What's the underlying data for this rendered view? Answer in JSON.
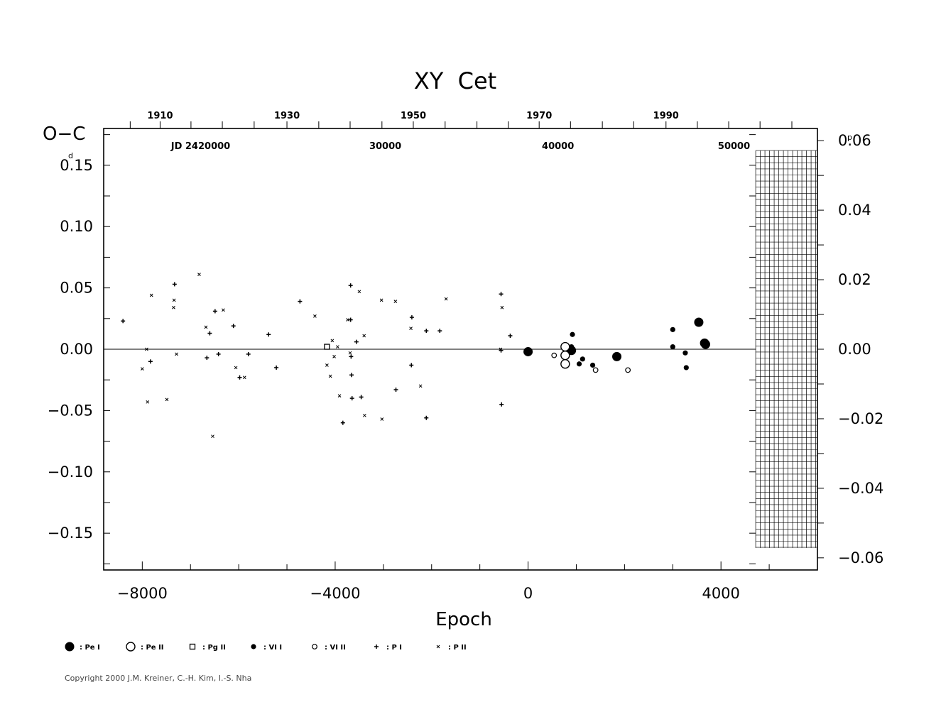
{
  "chart_data": {
    "type": "scatter",
    "title": "XY  Cet",
    "xlabel": "Epoch",
    "ylabel": "O−C",
    "ylabel_unit": "d",
    "y2label_unit": "p",
    "xlim": [
      -8800,
      6000
    ],
    "ylim": [
      -0.18,
      0.18
    ],
    "y2lim": [
      -0.0635,
      0.0635
    ],
    "x_ticks": [
      -8000,
      -4000,
      0,
      4000
    ],
    "x_tick_labels": [
      "−8000",
      "−4000",
      "0",
      "4000"
    ],
    "y_ticks": [
      0.15,
      0.1,
      0.05,
      0.0,
      -0.05,
      -0.1,
      -0.15
    ],
    "y_tick_labels": [
      "0.15",
      "0.10",
      "0.05",
      "0.00",
      "−0.05",
      "−0.10",
      "−0.15"
    ],
    "y2_ticks": [
      0.06,
      0.04,
      0.02,
      0.0,
      -0.02,
      -0.04,
      -0.06
    ],
    "y2_tick_labels": [
      "0.06",
      "0.04",
      "0.02",
      "0.00",
      "−0.02",
      "−0.04",
      "−0.06"
    ],
    "top_year_ticks": [
      {
        "epoch": -7630,
        "label": "1910"
      },
      {
        "epoch": -5000,
        "label": "1930"
      },
      {
        "epoch": -2380,
        "label": "1950"
      },
      {
        "epoch": 230,
        "label": "1970"
      },
      {
        "epoch": 2860,
        "label": "1990"
      }
    ],
    "top_year_minor": [
      -8250,
      -6990,
      -6340,
      -5680,
      -4340,
      -3690,
      -3030,
      -1720,
      -1060,
      -410,
      880,
      1540,
      2190,
      3510,
      4160,
      4810,
      5470
    ],
    "jd_labels": [
      {
        "epoch": -6790,
        "label": "JD 2420000"
      },
      {
        "epoch": -2960,
        "label": "30000"
      },
      {
        "epoch": 620,
        "label": "40000"
      },
      {
        "epoch": 4270,
        "label": "50000"
      }
    ],
    "hatched_region": {
      "x_from": 4720,
      "x_to": 6000,
      "y_from": -0.162,
      "y_to": 0.162
    },
    "legend": [
      {
        "key": "PeI",
        "label": ": Pe I"
      },
      {
        "key": "PeII",
        "label": ": Pe II"
      },
      {
        "key": "PgII",
        "label": ": Pg II"
      },
      {
        "key": "VII",
        "label": ": VI I"
      },
      {
        "key": "VIII",
        "label": ": VI II"
      },
      {
        "key": "PI",
        "label": ": P I"
      },
      {
        "key": "PII",
        "label": ": P II"
      }
    ],
    "series": [
      {
        "name": "Pe I",
        "marker": "filled-circle-large",
        "points": [
          [
            0,
            -0.002
          ],
          [
            900,
            -0.001
          ],
          [
            1840,
            -0.006
          ],
          [
            3540,
            0.022
          ],
          [
            3660,
            0.005
          ],
          [
            3680,
            0.004
          ]
        ]
      },
      {
        "name": "Pe II",
        "marker": "open-circle-large",
        "points": [
          [
            770,
            0.002
          ],
          [
            770,
            -0.005
          ],
          [
            770,
            -0.012
          ]
        ]
      },
      {
        "name": "Pg II",
        "marker": "open-square",
        "points": [
          [
            -4170,
            0.002
          ]
        ]
      },
      {
        "name": "VI I",
        "marker": "filled-circle-small",
        "points": [
          [
            920,
            0.012
          ],
          [
            900,
            0.002
          ],
          [
            1060,
            -0.012
          ],
          [
            1130,
            -0.008
          ],
          [
            1340,
            -0.013
          ],
          [
            3000,
            0.016
          ],
          [
            3000,
            0.002
          ],
          [
            3260,
            -0.003
          ],
          [
            3280,
            -0.015
          ]
        ]
      },
      {
        "name": "VI II",
        "marker": "open-circle-small",
        "points": [
          [
            540,
            -0.005
          ],
          [
            1400,
            -0.017
          ],
          [
            2070,
            -0.017
          ]
        ]
      },
      {
        "name": "P I",
        "marker": "plus",
        "points": [
          [
            -8400,
            0.023
          ],
          [
            -7830,
            -0.01
          ],
          [
            -7330,
            0.053
          ],
          [
            -6660,
            -0.007
          ],
          [
            -6600,
            0.013
          ],
          [
            -6490,
            0.031
          ],
          [
            -6420,
            -0.004
          ],
          [
            -6110,
            0.019
          ],
          [
            -5980,
            -0.023
          ],
          [
            -5800,
            -0.004
          ],
          [
            -5380,
            0.012
          ],
          [
            -5220,
            -0.015
          ],
          [
            -4730,
            0.039
          ],
          [
            -3840,
            -0.06
          ],
          [
            -3680,
            0.052
          ],
          [
            -3680,
            0.024
          ],
          [
            -3670,
            -0.006
          ],
          [
            -3660,
            -0.021
          ],
          [
            -3650,
            -0.04
          ],
          [
            -3560,
            0.006
          ],
          [
            -3460,
            -0.039
          ],
          [
            -2740,
            -0.033
          ],
          [
            -2410,
            0.026
          ],
          [
            -2420,
            -0.013
          ],
          [
            -2110,
            0.015
          ],
          [
            -2110,
            -0.056
          ],
          [
            -1830,
            0.015
          ],
          [
            -560,
            0.045
          ],
          [
            -550,
            -0.045
          ],
          [
            -560,
            -0.001
          ],
          [
            -370,
            0.011
          ]
        ]
      },
      {
        "name": "P II",
        "marker": "x",
        "points": [
          [
            -8000,
            -0.016
          ],
          [
            -7910,
            0.0
          ],
          [
            -7890,
            -0.043
          ],
          [
            -7810,
            0.044
          ],
          [
            -7490,
            -0.041
          ],
          [
            -7340,
            0.04
          ],
          [
            -7350,
            0.034
          ],
          [
            -7290,
            -0.004
          ],
          [
            -6820,
            0.061
          ],
          [
            -6680,
            0.018
          ],
          [
            -6540,
            -0.071
          ],
          [
            -6320,
            0.032
          ],
          [
            -6060,
            -0.015
          ],
          [
            -5880,
            -0.023
          ],
          [
            -4420,
            0.027
          ],
          [
            -4170,
            -0.013
          ],
          [
            -4100,
            -0.022
          ],
          [
            -4060,
            0.007
          ],
          [
            -4020,
            -0.006
          ],
          [
            -3950,
            0.002
          ],
          [
            -3910,
            -0.038
          ],
          [
            -3740,
            0.024
          ],
          [
            -3690,
            -0.003
          ],
          [
            -3500,
            0.047
          ],
          [
            -3400,
            0.011
          ],
          [
            -3390,
            -0.054
          ],
          [
            -3040,
            0.04
          ],
          [
            -3030,
            -0.057
          ],
          [
            -2750,
            0.039
          ],
          [
            -2430,
            0.017
          ],
          [
            -2230,
            -0.03
          ],
          [
            -1700,
            0.041
          ],
          [
            -540,
            0.034
          ],
          [
            -570,
            0.0
          ]
        ]
      }
    ]
  },
  "copyright": "Copyright 2000 J.M. Kreiner, C.-H. Kim, I.-S. Nha"
}
